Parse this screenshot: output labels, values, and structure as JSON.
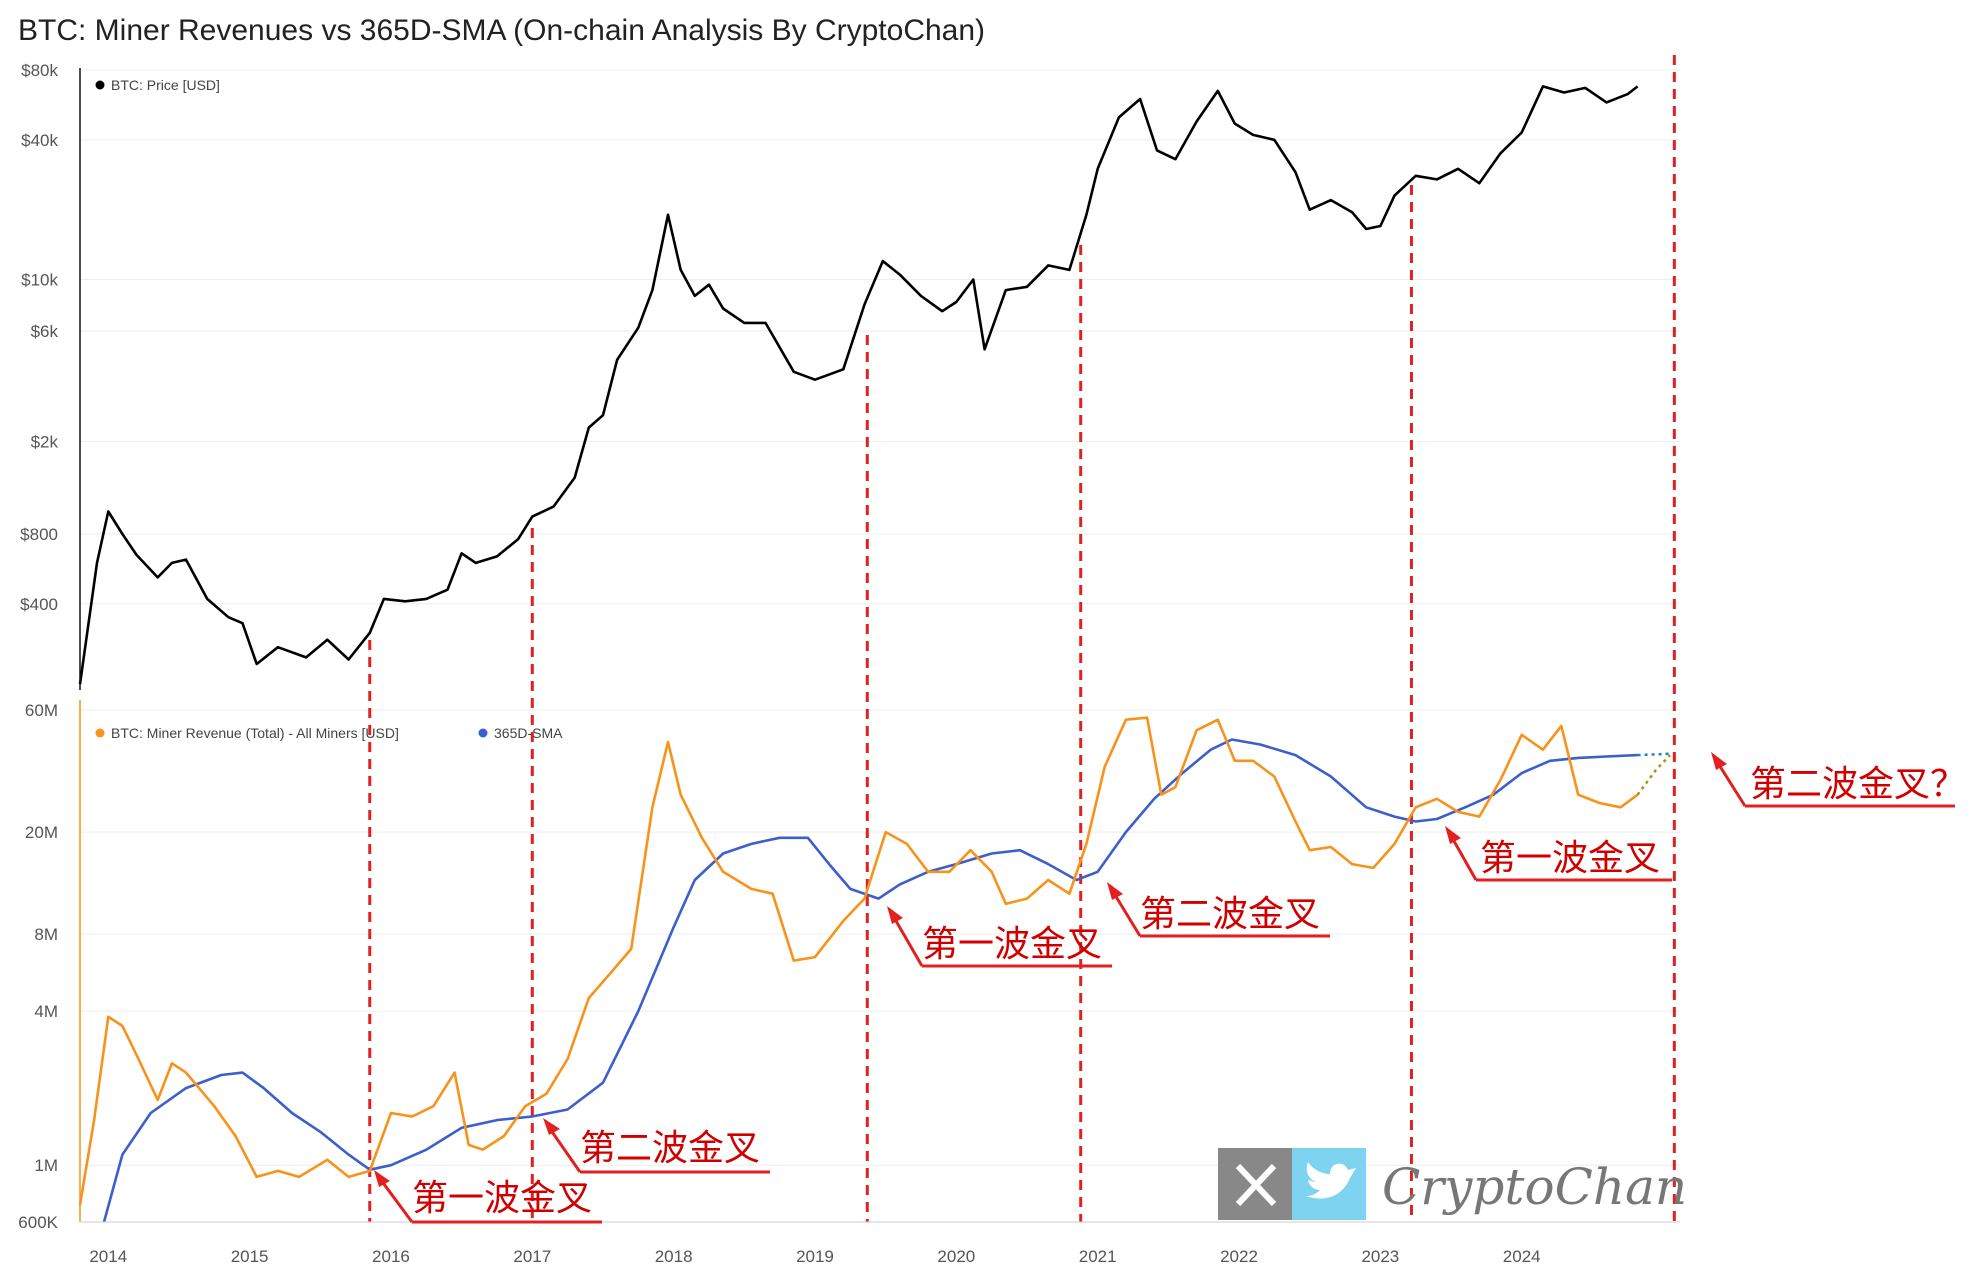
{
  "title": "BTC: Miner Revenues vs 365D-SMA (On-chain Analysis By CryptoChan)",
  "chart_data": [
    {
      "type": "line",
      "scale": "log",
      "ylabel": "",
      "x_ticks": [
        "2014",
        "2015",
        "2016",
        "2017",
        "2018",
        "2019",
        "2020",
        "2021",
        "2022",
        "2023",
        "2024"
      ],
      "y_ticks": [
        "$80k",
        "$40k",
        "$10k",
        "$6k",
        "$2k",
        "$800",
        "$400"
      ],
      "y_tick_values": [
        80000,
        40000,
        10000,
        6000,
        2000,
        800,
        400
      ],
      "ylim": [
        170,
        80000
      ],
      "legend": "top-left",
      "series": [
        {
          "name": "BTC: Price [USD]",
          "color": "#000000",
          "points": [
            [
              2013.8,
              180
            ],
            [
              2013.92,
              600
            ],
            [
              2014.0,
              1000
            ],
            [
              2014.1,
              800
            ],
            [
              2014.2,
              650
            ],
            [
              2014.35,
              520
            ],
            [
              2014.45,
              600
            ],
            [
              2014.55,
              620
            ],
            [
              2014.7,
              420
            ],
            [
              2014.85,
              350
            ],
            [
              2014.95,
              330
            ],
            [
              2015.05,
              220
            ],
            [
              2015.2,
              260
            ],
            [
              2015.4,
              235
            ],
            [
              2015.55,
              280
            ],
            [
              2015.7,
              230
            ],
            [
              2015.85,
              300
            ],
            [
              2015.95,
              420
            ],
            [
              2016.1,
              410
            ],
            [
              2016.25,
              420
            ],
            [
              2016.4,
              460
            ],
            [
              2016.5,
              660
            ],
            [
              2016.6,
              600
            ],
            [
              2016.75,
              640
            ],
            [
              2016.9,
              760
            ],
            [
              2017.0,
              950
            ],
            [
              2017.15,
              1050
            ],
            [
              2017.3,
              1400
            ],
            [
              2017.4,
              2300
            ],
            [
              2017.5,
              2600
            ],
            [
              2017.6,
              4500
            ],
            [
              2017.75,
              6200
            ],
            [
              2017.85,
              9000
            ],
            [
              2017.96,
              19000
            ],
            [
              2018.05,
              11000
            ],
            [
              2018.15,
              8500
            ],
            [
              2018.25,
              9500
            ],
            [
              2018.35,
              7500
            ],
            [
              2018.5,
              6500
            ],
            [
              2018.65,
              6500
            ],
            [
              2018.85,
              4000
            ],
            [
              2019.0,
              3700
            ],
            [
              2019.2,
              4100
            ],
            [
              2019.35,
              7800
            ],
            [
              2019.48,
              12000
            ],
            [
              2019.6,
              10500
            ],
            [
              2019.75,
              8500
            ],
            [
              2019.9,
              7300
            ],
            [
              2020.0,
              8000
            ],
            [
              2020.12,
              10000
            ],
            [
              2020.2,
              5000
            ],
            [
              2020.35,
              9000
            ],
            [
              2020.5,
              9300
            ],
            [
              2020.65,
              11500
            ],
            [
              2020.8,
              11000
            ],
            [
              2020.92,
              19000
            ],
            [
              2021.0,
              30000
            ],
            [
              2021.15,
              50000
            ],
            [
              2021.3,
              60000
            ],
            [
              2021.42,
              36000
            ],
            [
              2021.55,
              33000
            ],
            [
              2021.7,
              48000
            ],
            [
              2021.85,
              65000
            ],
            [
              2021.97,
              47000
            ],
            [
              2022.1,
              42000
            ],
            [
              2022.25,
              40000
            ],
            [
              2022.4,
              29000
            ],
            [
              2022.5,
              20000
            ],
            [
              2022.65,
              22000
            ],
            [
              2022.8,
              19500
            ],
            [
              2022.9,
              16500
            ],
            [
              2023.0,
              17000
            ],
            [
              2023.1,
              23000
            ],
            [
              2023.25,
              28000
            ],
            [
              2023.4,
              27000
            ],
            [
              2023.55,
              30000
            ],
            [
              2023.7,
              26000
            ],
            [
              2023.85,
              35000
            ],
            [
              2024.0,
              43000
            ],
            [
              2024.15,
              68000
            ],
            [
              2024.3,
              64000
            ],
            [
              2024.45,
              67000
            ],
            [
              2024.6,
              58000
            ],
            [
              2024.75,
              63000
            ],
            [
              2024.82,
              68000
            ]
          ]
        }
      ]
    },
    {
      "type": "line",
      "scale": "log",
      "ylabel": "",
      "x_ticks": [
        "2014",
        "2015",
        "2016",
        "2017",
        "2018",
        "2019",
        "2020",
        "2021",
        "2022",
        "2023",
        "2024"
      ],
      "y_ticks": [
        "60M",
        "20M",
        "8M",
        "4M",
        "1M",
        "600K"
      ],
      "y_tick_values": [
        60000000,
        20000000,
        8000000,
        4000000,
        1000000,
        600000
      ],
      "ylim": [
        600000,
        60000000
      ],
      "legend": "top-left",
      "series": [
        {
          "name": "BTC: Miner Revenue (Total) - All Miners [USD]",
          "color": "#f7931a",
          "points": [
            [
              2013.8,
              700000
            ],
            [
              2013.9,
              1500000
            ],
            [
              2014.0,
              3800000
            ],
            [
              2014.1,
              3500000
            ],
            [
              2014.2,
              2700000
            ],
            [
              2014.35,
              1800000
            ],
            [
              2014.45,
              2500000
            ],
            [
              2014.55,
              2300000
            ],
            [
              2014.75,
              1700000
            ],
            [
              2014.9,
              1300000
            ],
            [
              2015.05,
              900000
            ],
            [
              2015.2,
              950000
            ],
            [
              2015.35,
              900000
            ],
            [
              2015.55,
              1050000
            ],
            [
              2015.7,
              900000
            ],
            [
              2015.85,
              950000
            ],
            [
              2016.0,
              1600000
            ],
            [
              2016.15,
              1550000
            ],
            [
              2016.3,
              1700000
            ],
            [
              2016.45,
              2300000
            ],
            [
              2016.55,
              1200000
            ],
            [
              2016.65,
              1150000
            ],
            [
              2016.8,
              1300000
            ],
            [
              2016.95,
              1700000
            ],
            [
              2017.1,
              1900000
            ],
            [
              2017.25,
              2600000
            ],
            [
              2017.4,
              4500000
            ],
            [
              2017.55,
              5600000
            ],
            [
              2017.7,
              7000000
            ],
            [
              2017.85,
              25000000
            ],
            [
              2017.96,
              45000000
            ],
            [
              2018.05,
              28000000
            ],
            [
              2018.2,
              19000000
            ],
            [
              2018.35,
              14000000
            ],
            [
              2018.55,
              12000000
            ],
            [
              2018.7,
              11500000
            ],
            [
              2018.85,
              6300000
            ],
            [
              2019.0,
              6500000
            ],
            [
              2019.2,
              9000000
            ],
            [
              2019.35,
              11000000
            ],
            [
              2019.5,
              20000000
            ],
            [
              2019.65,
              18000000
            ],
            [
              2019.8,
              14000000
            ],
            [
              2019.95,
              14000000
            ],
            [
              2020.1,
              17000000
            ],
            [
              2020.25,
              14000000
            ],
            [
              2020.35,
              10500000
            ],
            [
              2020.5,
              11000000
            ],
            [
              2020.65,
              13000000
            ],
            [
              2020.8,
              11500000
            ],
            [
              2020.92,
              18000000
            ],
            [
              2021.05,
              36000000
            ],
            [
              2021.2,
              55000000
            ],
            [
              2021.35,
              56000000
            ],
            [
              2021.45,
              28000000
            ],
            [
              2021.55,
              30000000
            ],
            [
              2021.7,
              50000000
            ],
            [
              2021.85,
              55000000
            ],
            [
              2021.97,
              38000000
            ],
            [
              2022.1,
              38000000
            ],
            [
              2022.25,
              33000000
            ],
            [
              2022.4,
              22000000
            ],
            [
              2022.5,
              17000000
            ],
            [
              2022.65,
              17500000
            ],
            [
              2022.8,
              15000000
            ],
            [
              2022.95,
              14500000
            ],
            [
              2023.1,
              18000000
            ],
            [
              2023.25,
              25000000
            ],
            [
              2023.4,
              27000000
            ],
            [
              2023.55,
              24000000
            ],
            [
              2023.7,
              23000000
            ],
            [
              2023.85,
              32000000
            ],
            [
              2024.0,
              48000000
            ],
            [
              2024.15,
              42000000
            ],
            [
              2024.28,
              52000000
            ],
            [
              2024.4,
              28000000
            ],
            [
              2024.55,
              26000000
            ],
            [
              2024.7,
              25000000
            ],
            [
              2024.82,
              28000000
            ]
          ]
        },
        {
          "name": "365D-SMA",
          "color": "#3c5fcb",
          "points": [
            [
              2013.97,
              600000
            ],
            [
              2014.1,
              1100000
            ],
            [
              2014.3,
              1600000
            ],
            [
              2014.55,
              2000000
            ],
            [
              2014.8,
              2250000
            ],
            [
              2014.95,
              2300000
            ],
            [
              2015.1,
              2000000
            ],
            [
              2015.3,
              1600000
            ],
            [
              2015.5,
              1350000
            ],
            [
              2015.7,
              1100000
            ],
            [
              2015.85,
              960000
            ],
            [
              2016.0,
              1000000
            ],
            [
              2016.25,
              1150000
            ],
            [
              2016.5,
              1400000
            ],
            [
              2016.75,
              1500000
            ],
            [
              2017.0,
              1550000
            ],
            [
              2017.25,
              1650000
            ],
            [
              2017.5,
              2100000
            ],
            [
              2017.75,
              4000000
            ],
            [
              2018.0,
              8500000
            ],
            [
              2018.15,
              13000000
            ],
            [
              2018.35,
              16500000
            ],
            [
              2018.55,
              18000000
            ],
            [
              2018.75,
              19000000
            ],
            [
              2018.95,
              19000000
            ],
            [
              2019.1,
              15000000
            ],
            [
              2019.25,
              12000000
            ],
            [
              2019.45,
              11000000
            ],
            [
              2019.6,
              12500000
            ],
            [
              2019.8,
              14000000
            ],
            [
              2020.0,
              15000000
            ],
            [
              2020.25,
              16500000
            ],
            [
              2020.45,
              17000000
            ],
            [
              2020.65,
              15000000
            ],
            [
              2020.85,
              13000000
            ],
            [
              2021.0,
              14000000
            ],
            [
              2021.2,
              20000000
            ],
            [
              2021.4,
              27000000
            ],
            [
              2021.6,
              34000000
            ],
            [
              2021.8,
              42000000
            ],
            [
              2021.95,
              46000000
            ],
            [
              2022.15,
              44000000
            ],
            [
              2022.4,
              40000000
            ],
            [
              2022.65,
              33000000
            ],
            [
              2022.9,
              25000000
            ],
            [
              2023.1,
              23000000
            ],
            [
              2023.25,
              22000000
            ],
            [
              2023.4,
              22500000
            ],
            [
              2023.6,
              25000000
            ],
            [
              2023.8,
              28000000
            ],
            [
              2024.0,
              34000000
            ],
            [
              2024.2,
              38000000
            ],
            [
              2024.4,
              39000000
            ],
            [
              2024.6,
              39500000
            ],
            [
              2024.82,
              40000000
            ]
          ]
        }
      ],
      "projection": {
        "revenue": [
          [
            2024.82,
            28000000
          ],
          [
            2024.95,
            35000000
          ],
          [
            2025.05,
            40000000
          ]
        ],
        "sma": [
          [
            2024.82,
            40000000
          ],
          [
            2025.05,
            40500000
          ]
        ]
      }
    }
  ],
  "annotations": {
    "labels": [
      "第一波金叉",
      "第二波金叉",
      "第一波金叉",
      "第二波金叉",
      "第一波金叉",
      "第二波金叉？"
    ],
    "line_color": "#e32020"
  },
  "watermark": {
    "text": "CryptoChan",
    "x_icon": "x-logo-icon",
    "twitter_icon": "twitter-bird-icon",
    "x_color": "#888888",
    "twitter_color": "#7dd3f0"
  }
}
